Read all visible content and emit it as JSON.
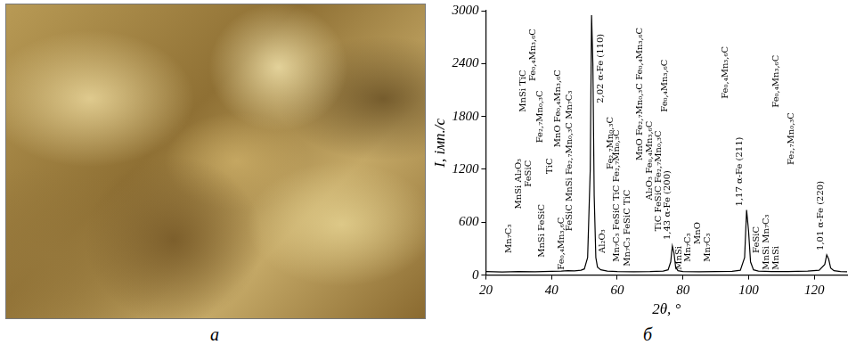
{
  "micrograph": {
    "label": "а"
  },
  "chart_data": {
    "type": "line",
    "panel_label": "б",
    "x_label": "2θ, °",
    "y_label": "I, імп./с",
    "color": "#000000",
    "grid": false,
    "xlim": [
      20,
      130
    ],
    "xticks": [
      20,
      40,
      60,
      80,
      100,
      120
    ],
    "ylim": [
      0,
      3000
    ],
    "yticks": [
      0,
      600,
      1200,
      1800,
      2400,
      3000
    ],
    "x": [
      20,
      25,
      30,
      35,
      40,
      43,
      45,
      47,
      49,
      50,
      51,
      51.8,
      52.2,
      52.6,
      53,
      53.5,
      54,
      55,
      57,
      60,
      65,
      70,
      74,
      75.5,
      76.3,
      76.8,
      77.3,
      77.8,
      78.5,
      80,
      85,
      90,
      95,
      97.5,
      98.8,
      99.4,
      100,
      100.6,
      101.5,
      103,
      107,
      112,
      118,
      121.5,
      123.2,
      123.8,
      124.4,
      125,
      126,
      128,
      130
    ],
    "values": [
      40,
      35,
      40,
      38,
      42,
      45,
      50,
      48,
      55,
      70,
      200,
      1200,
      2950,
      2400,
      900,
      200,
      90,
      60,
      45,
      40,
      38,
      40,
      45,
      60,
      150,
      330,
      250,
      90,
      50,
      40,
      38,
      40,
      42,
      55,
      200,
      740,
      500,
      150,
      60,
      45,
      40,
      40,
      45,
      55,
      120,
      230,
      180,
      80,
      50,
      40,
      38
    ],
    "annotations": [
      {
        "x": 27,
        "y": 250,
        "text": "Mn₇C₃"
      },
      {
        "x": 30,
        "y": 750,
        "text": "MnSi Al₂O₃"
      },
      {
        "x": 31.5,
        "y": 1850,
        "text": "MnSi TiC"
      },
      {
        "x": 33,
        "y": 1000,
        "text": "FeSiC"
      },
      {
        "x": 34.5,
        "y": 2200,
        "text": "Fe₀,₄Mn₃,₆C"
      },
      {
        "x": 36.5,
        "y": 1500,
        "text": "Fe₂,₇Mn₀,₃C"
      },
      {
        "x": 37,
        "y": 200,
        "text": "MnSi FeSiC"
      },
      {
        "x": 39.5,
        "y": 1150,
        "text": "TiC"
      },
      {
        "x": 42,
        "y": 1450,
        "text": "MnO Fe₀,₄Mn₃,₆C"
      },
      {
        "x": 43,
        "y": 60,
        "text": "Fe₀,₄Mn₃,₆C"
      },
      {
        "x": 45.5,
        "y": 500,
        "text": "FeSiC MnSi Fe₂,₇Mn₀,₃C Mn₇C₃"
      },
      {
        "x": 55,
        "y": 1950,
        "text": "2,02 α-Fe (110)"
      },
      {
        "x": 55.5,
        "y": 250,
        "text": "Al₂O₃"
      },
      {
        "x": 58,
        "y": 1200,
        "text": "Fe₂,₇Mn₀,₃C"
      },
      {
        "x": 60,
        "y": 150,
        "text": "Mn₇C₃ FeSiC TiC Fe₂,₇Mn₀,₃C"
      },
      {
        "x": 63,
        "y": 100,
        "text": "Mn₇C₃ FeSiC TiC"
      },
      {
        "x": 67,
        "y": 1300,
        "text": "MnO Fe₂,₇Mn₀,₃C Fe₀,₄Mn₃,₆C"
      },
      {
        "x": 70,
        "y": 850,
        "text": "Al₂O₃ Fe₀,₄Mn₃,₆C"
      },
      {
        "x": 72.5,
        "y": 500,
        "text": "TiC FeSiC Fe₂,₇Mn₀,₃C"
      },
      {
        "x": 74.5,
        "y": 1850,
        "text": "Fe₀,₄Mn₃,₆C"
      },
      {
        "x": 75.3,
        "y": 400,
        "text": "1,43 α-Fe (200)"
      },
      {
        "x": 78.8,
        "y": 60,
        "text": "MnSi"
      },
      {
        "x": 81.5,
        "y": 150,
        "text": "Mn₇C₃"
      },
      {
        "x": 84.5,
        "y": 350,
        "text": "MnO"
      },
      {
        "x": 87.5,
        "y": 150,
        "text": "Mn₇C₃"
      },
      {
        "x": 93,
        "y": 2000,
        "text": "Fe₀,₄Mn₃,₆C"
      },
      {
        "x": 97.3,
        "y": 780,
        "text": "1,17 α-Fe (211)"
      },
      {
        "x": 102.5,
        "y": 250,
        "text": "FeSiC"
      },
      {
        "x": 105.5,
        "y": 60,
        "text": "MnSi Mn₇C₃"
      },
      {
        "x": 108.5,
        "y": 60,
        "text": "MnSi"
      },
      {
        "x": 108.5,
        "y": 1900,
        "text": "Fe₀,₄Mn₃,₆C"
      },
      {
        "x": 113,
        "y": 1250,
        "text": "Fe₂,₇Mn₀,₃C"
      },
      {
        "x": 122,
        "y": 280,
        "text": "1,01 α-Fe (220)"
      }
    ]
  }
}
